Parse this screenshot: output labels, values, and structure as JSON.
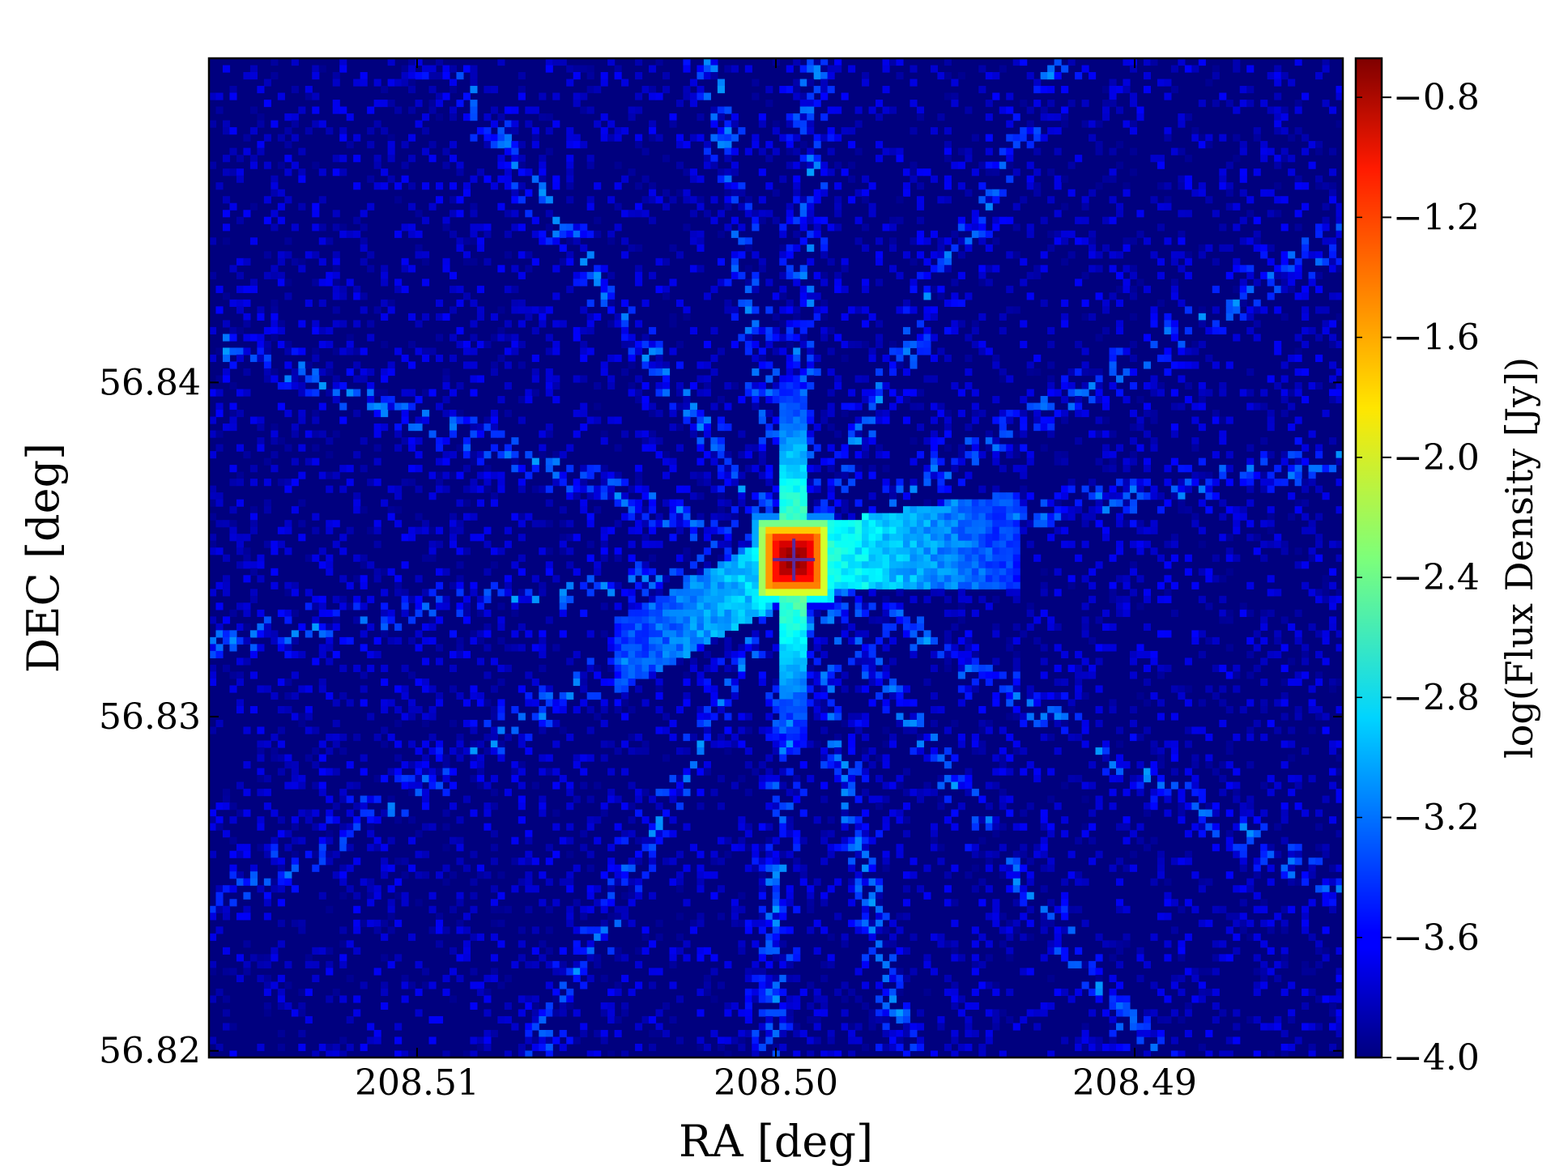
{
  "chart_data": {
    "type": "heatmap",
    "title": "",
    "xlabel": "RA [deg]",
    "ylabel": "DEC [deg]",
    "colorbar_label": "log(Flux Density [Jy])",
    "x_axis": {
      "direction": "decreasing-to-right",
      "range": [
        208.5158,
        208.4842
      ],
      "ticks": [
        208.51,
        208.5,
        208.49
      ],
      "tick_labels": [
        "208.51",
        "208.50",
        "208.49"
      ]
    },
    "y_axis": {
      "range": [
        56.8198,
        56.8497
      ],
      "ticks": [
        56.82,
        56.83,
        56.84
      ],
      "tick_labels": [
        "56.82",
        "56.83",
        "56.84"
      ]
    },
    "colorbar": {
      "range": [
        -4.0,
        -0.67
      ],
      "ticks": [
        -4.0,
        -3.6,
        -3.2,
        -2.8,
        -2.4,
        -2.0,
        -1.6,
        -1.2,
        -0.8
      ],
      "tick_labels": [
        "−4.0",
        "−3.6",
        "−3.2",
        "−2.8",
        "−2.4",
        "−2.0",
        "−1.6",
        "−1.2",
        "−0.8"
      ],
      "colormap": "jet"
    },
    "peak": {
      "ra": 208.4995,
      "dec": 56.8347,
      "value": -0.7
    },
    "background_value": -4.0,
    "marker": {
      "type": "plus",
      "ra": 208.4995,
      "dec": 56.8347,
      "color": "#5a2a9a"
    },
    "grid": false
  }
}
